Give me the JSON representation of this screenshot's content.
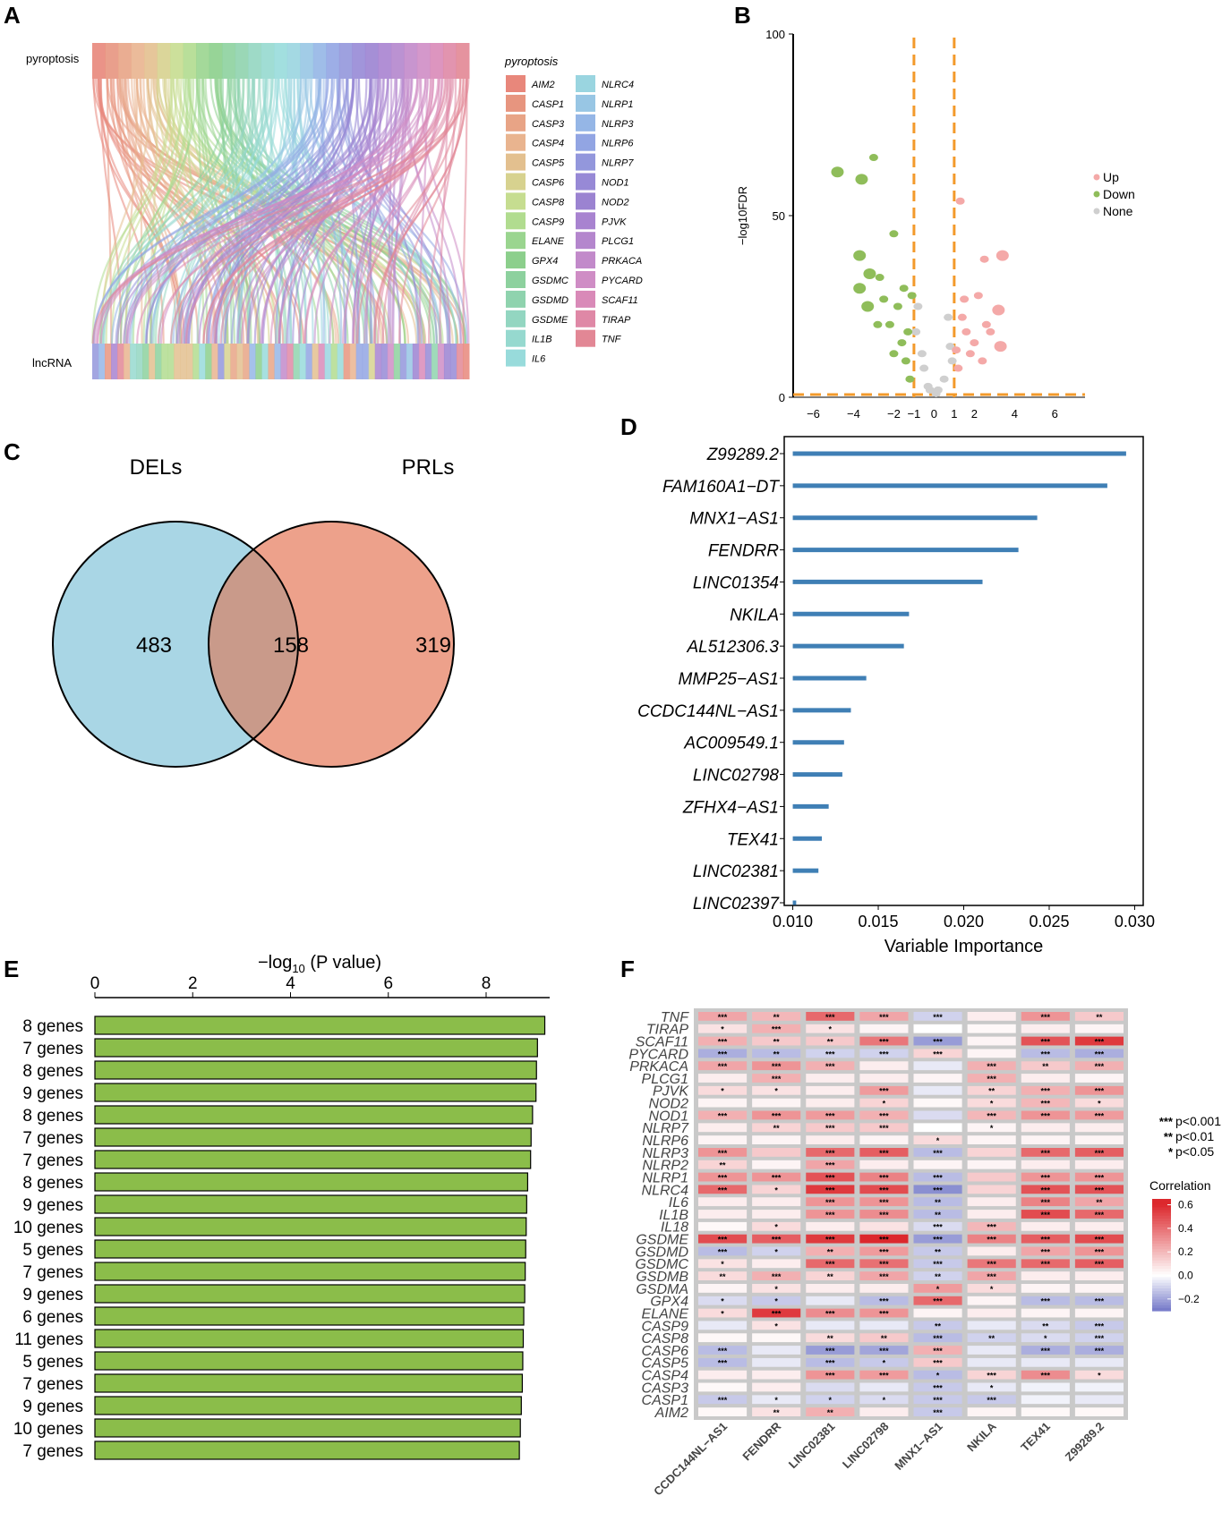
{
  "panels": {
    "a": "A",
    "b": "B",
    "c": "C",
    "d": "D",
    "e": "E",
    "f": "F"
  },
  "chart_data": [
    {
      "panel": "A",
      "type": "sankey",
      "top_label": "pyroptosis",
      "bottom_label": "lncRNA",
      "legend_title": "pyroptosis",
      "genes": [
        "AIM2",
        "CASP1",
        "CASP3",
        "CASP4",
        "CASP5",
        "CASP6",
        "CASP8",
        "CASP9",
        "ELANE",
        "GPX4",
        "GSDMC",
        "GSDMD",
        "GSDME",
        "IL1B",
        "IL6",
        "NLRC4",
        "NLRP1",
        "NLRP3",
        "NLRP6",
        "NLRP7",
        "NOD1",
        "NOD2",
        "PJVK",
        "PLCG1",
        "PRKACA",
        "PYCARD",
        "SCAF11",
        "TIRAP",
        "TNF"
      ],
      "colors": [
        "#e8877b",
        "#e7957f",
        "#e8a486",
        "#e9b48f",
        "#e3c08f",
        "#d7d28f",
        "#c6dd90",
        "#b1dc8f",
        "#9ad58f",
        "#8ccf8c",
        "#8dd19e",
        "#8fd3ae",
        "#93d6c1",
        "#96d9cf",
        "#98dbdb",
        "#9ad5e0",
        "#98c6e4",
        "#95b6e6",
        "#92a5e3",
        "#9397dc",
        "#9789d6",
        "#9b83d1",
        "#a883d0",
        "#b486cd",
        "#c28aca",
        "#cf8dc5",
        "#d98ab8",
        "#df88a6",
        "#e28795"
      ]
    },
    {
      "panel": "B",
      "type": "scatter",
      "ylabel": "−log10FDR",
      "xticks": [
        -6,
        -4,
        -2,
        -1,
        0,
        1,
        2,
        4,
        6
      ],
      "xtick_labels": [
        "−6",
        "−4",
        "−2",
        "−1",
        "0",
        "1",
        "2",
        "4",
        "6"
      ],
      "yticks": [
        0,
        50,
        100
      ],
      "xlim": [
        -7,
        7.5
      ],
      "ylim": [
        0,
        100
      ],
      "thresholds": {
        "x": [
          -1,
          1
        ],
        "y": 0
      },
      "legend": [
        {
          "label": "Up",
          "color": "#f4a9a8"
        },
        {
          "label": "Down",
          "color": "#8fbd5a"
        },
        {
          "label": "None",
          "color": "#cfcfcf"
        }
      ],
      "points_up": [
        [
          1.3,
          54
        ],
        [
          2.5,
          38
        ],
        [
          3.4,
          39
        ],
        [
          3.2,
          24
        ],
        [
          3.3,
          14
        ],
        [
          1.4,
          22
        ],
        [
          1.6,
          18
        ],
        [
          2.0,
          15
        ],
        [
          1.8,
          12
        ],
        [
          2.6,
          20
        ],
        [
          2.2,
          28
        ],
        [
          1.2,
          8
        ],
        [
          1.5,
          27
        ],
        [
          2.8,
          18
        ],
        [
          1.1,
          13
        ],
        [
          2.4,
          10
        ]
      ],
      "points_down": [
        [
          -4.8,
          62
        ],
        [
          -3.6,
          60
        ],
        [
          -3.7,
          39
        ],
        [
          -3.7,
          30
        ],
        [
          -3.0,
          66
        ],
        [
          -2.0,
          45
        ],
        [
          -3.2,
          34
        ],
        [
          -2.7,
          33
        ],
        [
          -3.3,
          25
        ],
        [
          -2.2,
          20
        ],
        [
          -1.6,
          15
        ],
        [
          -1.4,
          10
        ],
        [
          -1.8,
          25
        ],
        [
          -2.5,
          27
        ],
        [
          -1.2,
          5
        ],
        [
          -2.8,
          20
        ],
        [
          -1.1,
          28
        ],
        [
          -1.5,
          30
        ],
        [
          -2.0,
          12
        ],
        [
          -1.3,
          18
        ]
      ],
      "points_none": [
        [
          -0.9,
          18
        ],
        [
          -0.6,
          12
        ],
        [
          -0.3,
          3
        ],
        [
          0.1,
          1
        ],
        [
          0.5,
          5
        ],
        [
          0.8,
          14
        ],
        [
          -0.8,
          25
        ],
        [
          0.7,
          22
        ],
        [
          0.2,
          2
        ],
        [
          -0.5,
          8
        ],
        [
          0.9,
          10
        ],
        [
          -0.2,
          2
        ]
      ]
    },
    {
      "panel": "C",
      "type": "venn",
      "sets": [
        {
          "label": "DELs",
          "only": "483",
          "color": "#a9d6e5"
        },
        {
          "label": "PRLs",
          "only": "319",
          "color": "#eda18b"
        }
      ],
      "intersection": "158",
      "intersection_color": "#c99a8a"
    },
    {
      "panel": "D",
      "type": "bar",
      "orientation": "horizontal",
      "xlabel": "Variable Importance",
      "xlim": [
        0.0095,
        0.0305
      ],
      "xticks": [
        0.01,
        0.015,
        0.02,
        0.025,
        0.03
      ],
      "xtick_labels": [
        "0.010",
        "0.015",
        "0.020",
        "0.025",
        "0.030"
      ],
      "bar_color": "#3f7fb5",
      "categories": [
        "Z99289.2",
        "FAM160A1−DT",
        "MNX1−AS1",
        "FENDRR",
        "LINC01354",
        "NKILA",
        "AL512306.3",
        "MMP25−AS1",
        "CCDC144NL−AS1",
        "AC009549.1",
        "LINC02798",
        "ZFHX4−AS1",
        "TEX41",
        "LINC02381",
        "LINC02397"
      ],
      "values": [
        0.0295,
        0.0284,
        0.0243,
        0.0232,
        0.0211,
        0.0168,
        0.0165,
        0.0143,
        0.0134,
        0.013,
        0.0129,
        0.0121,
        0.0117,
        0.0115,
        0.0102
      ]
    },
    {
      "panel": "E",
      "type": "bar",
      "orientation": "horizontal",
      "xlabel_prefix": "−log",
      "xlabel_sub": "10",
      "xlabel_suffix": " (P value)",
      "xticks": [
        0,
        2,
        4,
        6,
        8
      ],
      "xlim": [
        0,
        9.3
      ],
      "bar_color": "#8bbd4a",
      "categories": [
        "8 genes",
        "7 genes",
        "8 genes",
        "9 genes",
        "8 genes",
        "7 genes",
        "7 genes",
        "8 genes",
        "9 genes",
        "10 genes",
        "5 genes",
        "7 genes",
        "9 genes",
        "6 genes",
        "11 genes",
        "5 genes",
        "7 genes",
        "9 genes",
        "10 genes",
        "7 genes"
      ],
      "values": [
        9.2,
        9.05,
        9.03,
        9.02,
        8.95,
        8.92,
        8.91,
        8.85,
        8.83,
        8.82,
        8.81,
        8.8,
        8.79,
        8.77,
        8.76,
        8.75,
        8.74,
        8.72,
        8.7,
        8.68
      ]
    },
    {
      "panel": "F",
      "type": "heatmap",
      "rows": [
        "TNF",
        "TIRAP",
        "SCAF11",
        "PYCARD",
        "PRKACA",
        "PLCG1",
        "PJVK",
        "NOD2",
        "NOD1",
        "NLRP7",
        "NLRP6",
        "NLRP3",
        "NLRP2",
        "NLRP1",
        "NLRC4",
        "IL6",
        "IL1B",
        "IL18",
        "GSDME",
        "GSDMD",
        "GSDMC",
        "GSDMB",
        "GSDMA",
        "GPX4",
        "ELANE",
        "CASP9",
        "CASP8",
        "CASP6",
        "CASP5",
        "CASP4",
        "CASP3",
        "CASP1",
        "AIM2"
      ],
      "columns": [
        "CCDC144NL−AS1",
        "FENDRR",
        "LINC02381",
        "LINC02798",
        "MNX1−AS1",
        "NKILA",
        "TEX41",
        "Z99289.2"
      ],
      "values": [
        [
          0.25,
          0.2,
          0.42,
          0.25,
          -0.1,
          0.05,
          0.3,
          0.15
        ],
        [
          0.08,
          0.22,
          0.08,
          0.03,
          0.0,
          0.02,
          0.05,
          0.03
        ],
        [
          0.22,
          0.15,
          0.15,
          0.38,
          -0.22,
          0.03,
          0.48,
          0.55
        ],
        [
          -0.18,
          -0.15,
          -0.1,
          -0.1,
          0.12,
          0.03,
          -0.15,
          -0.18
        ],
        [
          0.25,
          0.3,
          0.22,
          0.05,
          -0.05,
          0.22,
          0.15,
          0.22
        ],
        [
          0.05,
          0.22,
          0.05,
          0.05,
          0.03,
          0.22,
          0.05,
          0.03
        ],
        [
          0.1,
          0.08,
          0.05,
          0.28,
          -0.05,
          0.12,
          0.22,
          0.3
        ],
        [
          0.03,
          0.03,
          0.05,
          0.12,
          0.02,
          0.1,
          0.2,
          0.1
        ],
        [
          0.22,
          0.3,
          0.28,
          0.22,
          -0.08,
          0.2,
          0.3,
          0.28
        ],
        [
          0.05,
          0.12,
          0.15,
          0.15,
          0.0,
          0.03,
          0.05,
          0.05
        ],
        [
          0.03,
          0.03,
          0.05,
          0.03,
          0.1,
          0.03,
          0.03,
          0.03
        ],
        [
          0.3,
          0.15,
          0.42,
          0.45,
          -0.15,
          0.12,
          0.42,
          0.45
        ],
        [
          0.12,
          0.03,
          0.25,
          0.05,
          0.03,
          0.03,
          0.05,
          0.05
        ],
        [
          0.3,
          0.3,
          0.48,
          0.35,
          -0.15,
          0.15,
          0.3,
          0.3
        ],
        [
          0.42,
          0.12,
          0.55,
          0.5,
          -0.25,
          0.12,
          0.48,
          0.48
        ],
        [
          0.05,
          0.05,
          0.3,
          0.3,
          -0.15,
          0.05,
          0.35,
          0.25
        ],
        [
          0.05,
          0.05,
          0.3,
          0.32,
          -0.15,
          0.05,
          0.5,
          0.42
        ],
        [
          0.02,
          0.1,
          0.05,
          0.08,
          -0.08,
          0.2,
          0.05,
          0.05
        ],
        [
          0.5,
          0.45,
          0.55,
          0.6,
          -0.22,
          0.35,
          0.45,
          0.5
        ],
        [
          -0.15,
          -0.1,
          0.22,
          0.28,
          -0.12,
          0.05,
          0.25,
          0.3
        ],
        [
          0.08,
          0.05,
          0.42,
          0.4,
          -0.12,
          0.38,
          0.42,
          0.45
        ],
        [
          0.1,
          0.22,
          0.12,
          0.25,
          -0.1,
          0.25,
          0.05,
          0.05
        ],
        [
          0.03,
          0.08,
          0.05,
          0.05,
          0.28,
          0.1,
          0.03,
          0.03
        ],
        [
          -0.08,
          -0.12,
          -0.05,
          -0.15,
          0.42,
          0.03,
          -0.15,
          -0.15
        ],
        [
          0.1,
          0.55,
          0.32,
          0.3,
          0.03,
          0.05,
          0.03,
          0.03
        ],
        [
          -0.05,
          0.08,
          -0.05,
          -0.05,
          -0.12,
          -0.05,
          -0.08,
          -0.12
        ],
        [
          0.02,
          0.02,
          0.1,
          0.15,
          -0.15,
          -0.1,
          -0.08,
          -0.1
        ],
        [
          -0.15,
          -0.05,
          -0.22,
          -0.2,
          0.22,
          -0.05,
          -0.18,
          -0.18
        ],
        [
          -0.15,
          -0.05,
          -0.15,
          -0.12,
          0.15,
          -0.05,
          -0.05,
          -0.05
        ],
        [
          0.05,
          0.05,
          0.3,
          0.28,
          -0.15,
          0.12,
          0.32,
          0.1
        ],
        [
          0.02,
          0.05,
          -0.08,
          -0.05,
          -0.12,
          -0.05,
          -0.03,
          -0.03
        ],
        [
          -0.12,
          -0.05,
          -0.1,
          -0.08,
          -0.12,
          -0.12,
          -0.03,
          -0.05
        ],
        [
          0.02,
          0.08,
          0.22,
          0.05,
          -0.12,
          0.03,
          0.02,
          0.02
        ]
      ],
      "stars": [
        [
          "***",
          "**",
          "***",
          "***",
          "***",
          "",
          "***",
          "**"
        ],
        [
          "*",
          "***",
          "*",
          "",
          "",
          "",
          "",
          ""
        ],
        [
          "***",
          "**",
          "**",
          "***",
          "***",
          "",
          "***",
          "***"
        ],
        [
          "***",
          "**",
          "***",
          "***",
          "***",
          "",
          "***",
          "***"
        ],
        [
          "***",
          "***",
          "***",
          "",
          "",
          "***",
          "**",
          "***"
        ],
        [
          "",
          "***",
          "",
          "",
          "",
          "***",
          "",
          ""
        ],
        [
          "*",
          "*",
          "",
          "***",
          "",
          "**",
          "***",
          "***"
        ],
        [
          "",
          "",
          "",
          "*",
          "",
          "*",
          "***",
          "*"
        ],
        [
          "***",
          "***",
          "***",
          "***",
          "",
          "***",
          "***",
          "***"
        ],
        [
          "",
          "**",
          "***",
          "***",
          "",
          "*",
          "",
          ""
        ],
        [
          "",
          "",
          "",
          "",
          "*",
          "",
          "",
          ""
        ],
        [
          "***",
          "",
          "***",
          "***",
          "***",
          "",
          "***",
          "***"
        ],
        [
          "**",
          "",
          "***",
          "",
          "",
          "",
          "",
          ""
        ],
        [
          "***",
          "***",
          "***",
          "***",
          "***",
          "",
          "***",
          "***"
        ],
        [
          "***",
          "*",
          "***",
          "***",
          "***",
          "",
          "***",
          "***"
        ],
        [
          "",
          "",
          "***",
          "***",
          "**",
          "",
          "***",
          "**"
        ],
        [
          "",
          "",
          "***",
          "***",
          "**",
          "",
          "***",
          "***"
        ],
        [
          "",
          "*",
          "",
          "",
          "***",
          "***",
          "",
          ""
        ],
        [
          "***",
          "***",
          "***",
          "***",
          "***",
          "***",
          "***",
          "***"
        ],
        [
          "***",
          "*",
          "**",
          "***",
          "**",
          "",
          "***",
          "***"
        ],
        [
          "*",
          "",
          "***",
          "***",
          "***",
          "***",
          "***",
          "***"
        ],
        [
          "**",
          "***",
          "**",
          "***",
          "**",
          "***",
          "",
          ""
        ],
        [
          "",
          "*",
          "",
          "",
          "*",
          "*",
          "",
          ""
        ],
        [
          "*",
          "*",
          "",
          "***",
          "***",
          "",
          "***",
          "***"
        ],
        [
          "*",
          "***",
          "***",
          "***",
          "",
          "",
          "",
          ""
        ],
        [
          "",
          "*",
          "",
          "",
          "**",
          "",
          "**",
          "***"
        ],
        [
          "",
          "",
          "**",
          "**",
          "***",
          "**",
          "*",
          "***"
        ],
        [
          "***",
          "",
          "***",
          "***",
          "***",
          "",
          "***",
          "***"
        ],
        [
          "***",
          "",
          "***",
          "*",
          "***",
          "",
          "",
          ""
        ],
        [
          "",
          "",
          "***",
          "***",
          "*",
          "***",
          "***",
          "*"
        ],
        [
          "",
          "",
          "",
          "",
          "***",
          "*",
          "",
          ""
        ],
        [
          "***",
          "*",
          "*",
          "*",
          "***",
          "***",
          "",
          ""
        ],
        [
          "",
          "**",
          "**",
          "",
          "***",
          "",
          "",
          ""
        ]
      ],
      "sig_legend": [
        {
          "stars": "***",
          "text": "p<0.001"
        },
        {
          "stars": "**",
          "text": "p<0.01"
        },
        {
          "stars": "*",
          "text": "p<0.05"
        }
      ],
      "colorbar_title": "Correlation",
      "colorbar_ticks": [
        0.6,
        0.4,
        0.2,
        0.0,
        -0.2
      ],
      "colorbar_tick_labels": [
        "0.6",
        "0.4",
        "0.2",
        "0.0",
        "−0.2"
      ],
      "colorbar_range": [
        -0.3,
        0.65
      ]
    }
  ]
}
